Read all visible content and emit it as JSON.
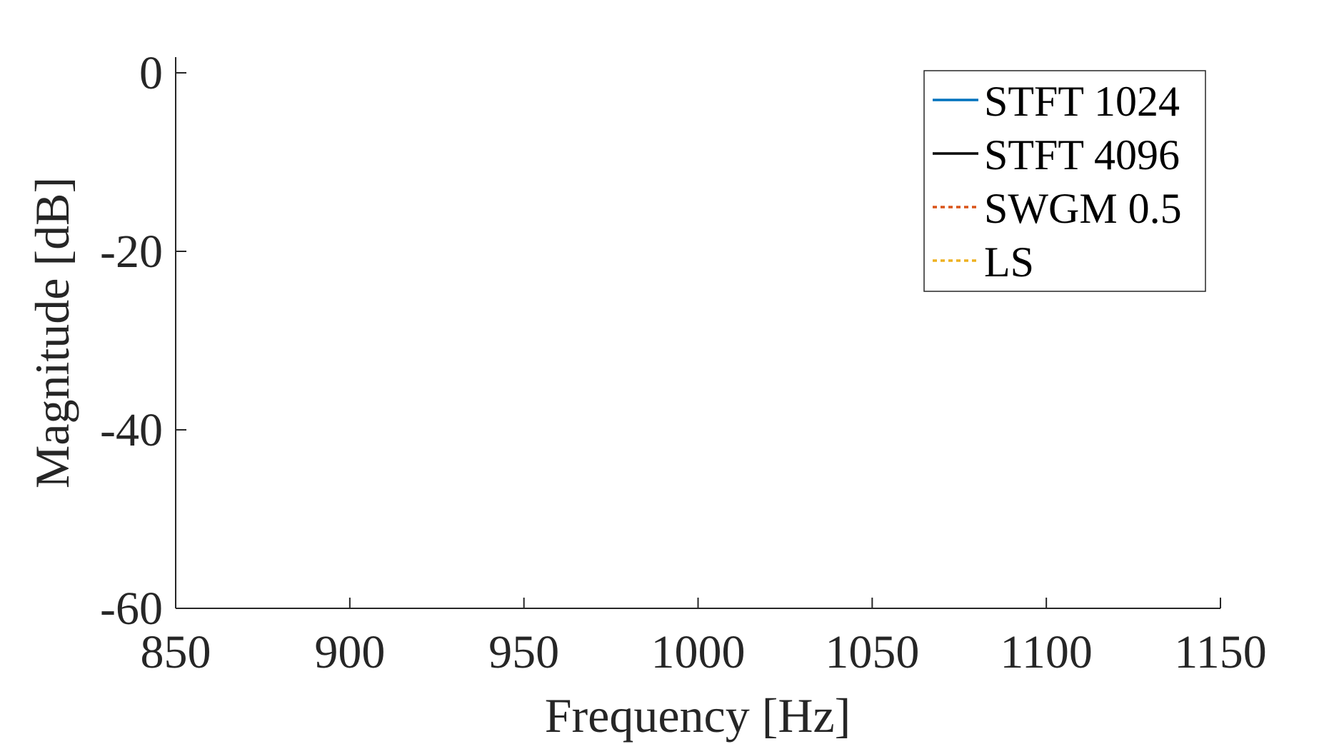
{
  "chart_data": {
    "type": "line",
    "title": "",
    "xlabel": "Frequency [Hz]",
    "ylabel": "Magnitude [dB]",
    "xlim": [
      850,
      1150
    ],
    "ylim": [
      -60,
      0
    ],
    "xticks": [
      850,
      900,
      950,
      1000,
      1050,
      1100,
      1150
    ],
    "xtick_labels": [
      "850",
      "900",
      "950",
      "1000",
      "1050",
      "1100",
      "1150"
    ],
    "yticks": [
      0,
      -20,
      -40,
      -60
    ],
    "ytick_labels": [
      "0",
      "-20",
      "-40",
      "-60"
    ],
    "grid": false,
    "legend_position": "top-right",
    "series": [
      {
        "name": "STFT 1024",
        "color": "#0072BD",
        "dash": "solid",
        "x": [],
        "y": []
      },
      {
        "name": "STFT 4096",
        "color": "#000000",
        "dash": "solid",
        "x": [],
        "y": []
      },
      {
        "name": "SWGM 0.5",
        "color": "#D95319",
        "dash": "dotted",
        "x": [],
        "y": []
      },
      {
        "name": "LS",
        "color": "#EDB120",
        "dash": "dotted",
        "x": [],
        "y": []
      }
    ]
  }
}
